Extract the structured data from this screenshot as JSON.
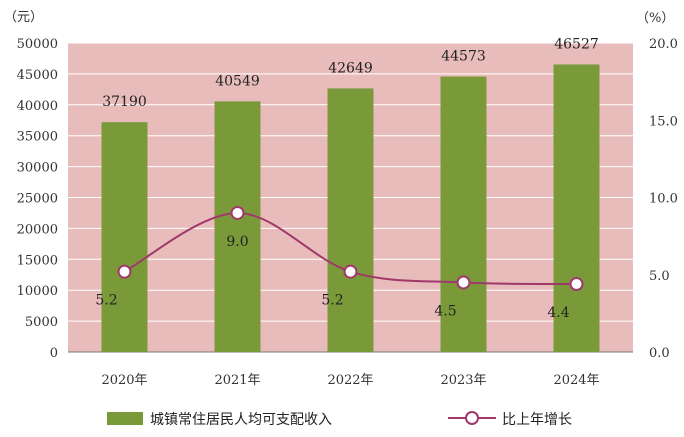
{
  "chart_data": {
    "type": "bar",
    "left_unit": "（元）",
    "right_unit": "（%）",
    "categories": [
      "2020年",
      "2021年",
      "2022年",
      "2023年",
      "2024年"
    ],
    "series": [
      {
        "name": "城镇常住居民人均可支配收入",
        "type": "bar",
        "axis": "left",
        "values": [
          37190,
          40549,
          42649,
          44573,
          46527
        ],
        "labels": [
          "37190",
          "40549",
          "42649",
          "44573",
          "46527"
        ],
        "color": "#7a9a3a"
      },
      {
        "name": "比上年增长",
        "type": "line",
        "axis": "right",
        "values": [
          5.2,
          9.0,
          5.2,
          4.5,
          4.4
        ],
        "labels": [
          "5.2",
          "9.0",
          "5.2",
          "4.5",
          "4.4"
        ],
        "color": "#a0386a"
      }
    ],
    "y_left": {
      "min": 0,
      "max": 50000,
      "ticks": [
        "0",
        "5000",
        "10000",
        "15000",
        "20000",
        "25000",
        "30000",
        "35000",
        "40000",
        "45000",
        "50000"
      ]
    },
    "y_right": {
      "min": 0,
      "max": 20,
      "ticks": [
        "0.0",
        "5.0",
        "10.0",
        "15.0",
        "20.0"
      ]
    },
    "background_color": "#e9bcbc",
    "grid": true,
    "legend_position": "bottom"
  }
}
